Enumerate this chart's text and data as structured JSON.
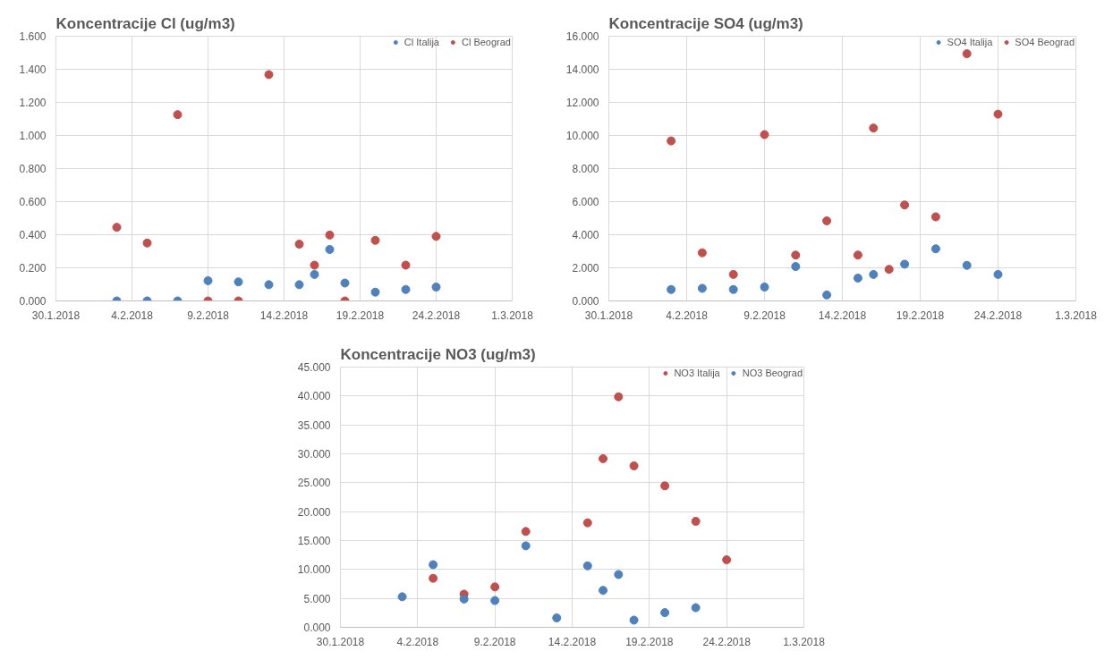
{
  "chart_data": [
    {
      "type": "scatter",
      "title": "Koncentracije Cl (ug/m3)",
      "x": [
        "2018-02-03",
        "2018-02-05",
        "2018-02-07",
        "2018-02-09",
        "2018-02-11",
        "2018-02-13",
        "2018-02-15",
        "2018-02-16",
        "2018-02-17",
        "2018-02-18",
        "2018-02-20",
        "2018-02-22",
        "2018-02-24"
      ],
      "series": [
        {
          "name": "Cl Italija",
          "color": "#4f81bd",
          "values": [
            0,
            0,
            0,
            0.122,
            0.115,
            0.098,
            0.098,
            0.16,
            0.311,
            0.108,
            0.053,
            0.069,
            0.084
          ]
        },
        {
          "name": "Cl Beograd",
          "color": "#c0504d",
          "values": [
            0.445,
            0.35,
            1.126,
            0,
            0,
            1.368,
            0.343,
            0.216,
            0.398,
            0,
            0.366,
            0.216,
            0.39
          ]
        }
      ],
      "xlim": [
        "2018-01-30",
        "2018-03-01"
      ],
      "xticks": [
        {
          "value": "2018-01-30",
          "label": "30.1.2018"
        },
        {
          "value": "2018-02-04",
          "label": "4.2.2018"
        },
        {
          "value": "2018-02-09",
          "label": "9.2.2018"
        },
        {
          "value": "2018-02-14",
          "label": "14.2.2018"
        },
        {
          "value": "2018-02-19",
          "label": "19.2.2018"
        },
        {
          "value": "2018-02-24",
          "label": "24.2.2018"
        },
        {
          "value": "2018-03-01",
          "label": "1.3.2018"
        }
      ],
      "ylim": [
        0,
        1.6
      ],
      "yticks": [
        {
          "value": 0,
          "label": "0.000"
        },
        {
          "value": 0.2,
          "label": "0.200"
        },
        {
          "value": 0.4,
          "label": "0.400"
        },
        {
          "value": 0.6,
          "label": "0.600"
        },
        {
          "value": 0.8,
          "label": "0.800"
        },
        {
          "value": 1.0,
          "label": "1.000"
        },
        {
          "value": 1.2,
          "label": "1.200"
        },
        {
          "value": 1.4,
          "label": "1.400"
        },
        {
          "value": 1.6,
          "label": "1.600"
        }
      ],
      "grid": true,
      "legend": "top right",
      "marker": "circle"
    },
    {
      "type": "scatter",
      "title": "Koncentracije SO4 (ug/m3)",
      "x": [
        "2018-02-03",
        "2018-02-05",
        "2018-02-07",
        "2018-02-09",
        "2018-02-11",
        "2018-02-13",
        "2018-02-15",
        "2018-02-16",
        "2018-02-17",
        "2018-02-18",
        "2018-02-20",
        "2018-02-22",
        "2018-02-24"
      ],
      "series": [
        {
          "name": "SO4 Italija",
          "color": "#4f81bd",
          "values": [
            0.69,
            0.76,
            0.69,
            0.84,
            2.08,
            0.36,
            1.38,
            1.6,
            null,
            2.22,
            3.15,
            2.15,
            1.6
          ]
        },
        {
          "name": "SO4 Beograd",
          "color": "#c0504d",
          "values": [
            9.67,
            2.91,
            1.6,
            10.05,
            2.77,
            4.84,
            2.77,
            10.45,
            1.91,
            5.8,
            5.08,
            14.94,
            11.29
          ]
        }
      ],
      "xlim": [
        "2018-01-30",
        "2018-03-01"
      ],
      "xticks": [
        {
          "value": "2018-01-30",
          "label": "30.1.2018"
        },
        {
          "value": "2018-02-04",
          "label": "4.2.2018"
        },
        {
          "value": "2018-02-09",
          "label": "9.2.2018"
        },
        {
          "value": "2018-02-14",
          "label": "14.2.2018"
        },
        {
          "value": "2018-02-19",
          "label": "19.2.2018"
        },
        {
          "value": "2018-02-24",
          "label": "24.2.2018"
        },
        {
          "value": "2018-03-01",
          "label": "1.3.2018"
        }
      ],
      "ylim": [
        0,
        16
      ],
      "yticks": [
        {
          "value": 0,
          "label": "0.000"
        },
        {
          "value": 2,
          "label": "2.000"
        },
        {
          "value": 4,
          "label": "4.000"
        },
        {
          "value": 6,
          "label": "6.000"
        },
        {
          "value": 8,
          "label": "8.000"
        },
        {
          "value": 10,
          "label": "10.000"
        },
        {
          "value": 12,
          "label": "12.000"
        },
        {
          "value": 14,
          "label": "14.000"
        },
        {
          "value": 16,
          "label": "16.000"
        }
      ],
      "grid": true,
      "legend": "top right",
      "marker": "circle"
    },
    {
      "type": "scatter",
      "title": "Koncentracije NO3 (ug/m3)",
      "x": [
        "2018-02-03",
        "2018-02-05",
        "2018-02-07",
        "2018-02-09",
        "2018-02-11",
        "2018-02-13",
        "2018-02-15",
        "2018-02-16",
        "2018-02-17",
        "2018-02-18",
        "2018-02-20",
        "2018-02-22",
        "2018-02-24"
      ],
      "series": [
        {
          "name": "NO3 Italija",
          "color": "#c0504d",
          "values": [
            null,
            8.48,
            5.74,
            6.98,
            16.57,
            null,
            18.07,
            29.16,
            39.86,
            27.92,
            24.46,
            18.33,
            11.68
          ]
        },
        {
          "name": "NO3 Beograd",
          "color": "#4f81bd",
          "values": [
            5.28,
            10.83,
            4.89,
            4.63,
            14.09,
            1.63,
            10.63,
            6.39,
            9.13,
            1.24,
            2.54,
            3.39,
            null
          ]
        }
      ],
      "xlim": [
        "2018-01-30",
        "2018-03-01"
      ],
      "xticks": [
        {
          "value": "2018-01-30",
          "label": "30.1.2018"
        },
        {
          "value": "2018-02-04",
          "label": "4.2.2018"
        },
        {
          "value": "2018-02-09",
          "label": "9.2.2018"
        },
        {
          "value": "2018-02-14",
          "label": "14.2.2018"
        },
        {
          "value": "2018-02-19",
          "label": "19.2.2018"
        },
        {
          "value": "2018-02-24",
          "label": "24.2.2018"
        },
        {
          "value": "2018-03-01",
          "label": "1.3.2018"
        }
      ],
      "ylim": [
        0,
        45
      ],
      "yticks": [
        {
          "value": 0,
          "label": "0.000"
        },
        {
          "value": 5,
          "label": "5.000"
        },
        {
          "value": 10,
          "label": "10.000"
        },
        {
          "value": 15,
          "label": "15.000"
        },
        {
          "value": 20,
          "label": "20.000"
        },
        {
          "value": 25,
          "label": "25.000"
        },
        {
          "value": 30,
          "label": "30.000"
        },
        {
          "value": 35,
          "label": "35.000"
        },
        {
          "value": 40,
          "label": "40.000"
        },
        {
          "value": 45,
          "label": "45.000"
        }
      ],
      "grid": true,
      "legend": "top right",
      "marker": "circle"
    }
  ]
}
